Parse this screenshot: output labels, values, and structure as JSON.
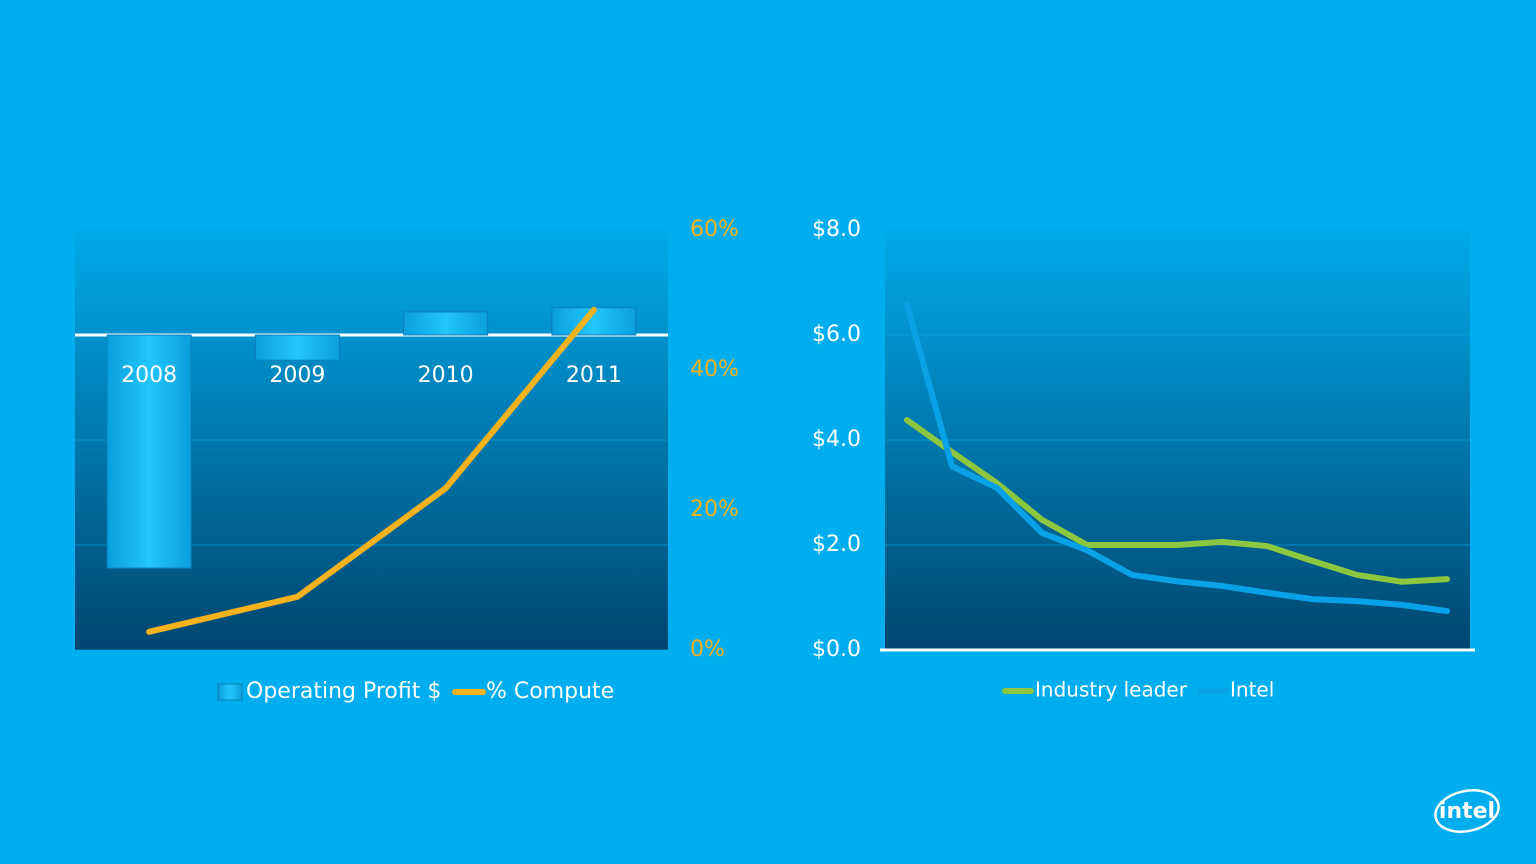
{
  "chart_data": [
    {
      "type": "bar",
      "categories": [
        "2008",
        "2009",
        "2010",
        "2011"
      ],
      "ylim": [
        -3,
        1
      ],
      "yticks": [
        -3,
        -2,
        -1,
        0,
        1
      ],
      "y2lim": [
        0,
        60
      ],
      "y2ticks": [
        {
          "value": 0,
          "label": "0%"
        },
        {
          "value": 20,
          "label": "20%"
        },
        {
          "value": 40,
          "label": "40%"
        },
        {
          "value": 60,
          "label": "60%"
        }
      ],
      "y2color": "#f5b21c",
      "grid": true,
      "series": [
        {
          "name": "Operating Profit $",
          "type": "bar",
          "color": "#19bdf5",
          "values": [
            -2.22,
            -0.24,
            0.22,
            0.26
          ]
        },
        {
          "name": "% Compute",
          "type": "line",
          "axis": "y2",
          "color": "#f5b21c",
          "values": [
            2.6,
            7.6,
            23.1,
            48.6
          ]
        }
      ]
    },
    {
      "type": "line",
      "categories": [
        null,
        null,
        null,
        null,
        null,
        null,
        null,
        null,
        null,
        null,
        null,
        null,
        null
      ],
      "ylim": [
        0,
        8
      ],
      "yticks": [
        {
          "value": 0,
          "label": "$0.0"
        },
        {
          "value": 2,
          "label": "$2.0"
        },
        {
          "value": 4,
          "label": "$4.0"
        },
        {
          "value": 6,
          "label": "$6.0"
        },
        {
          "value": 8,
          "label": "$8.0"
        }
      ],
      "grid": true,
      "series": [
        {
          "name": "Industry leader",
          "color": "#8dc63f",
          "values": [
            4.38,
            3.77,
            3.18,
            2.48,
            2.0,
            2.0,
            2.0,
            2.06,
            1.98,
            1.7,
            1.43,
            1.3,
            1.35
          ]
        },
        {
          "name": "Intel",
          "color": "#0aa2e6",
          "values": [
            6.57,
            3.5,
            3.09,
            2.23,
            1.9,
            1.43,
            1.31,
            1.22,
            1.09,
            0.97,
            0.93,
            0.86,
            0.74
          ]
        }
      ]
    }
  ],
  "logo": "intel"
}
